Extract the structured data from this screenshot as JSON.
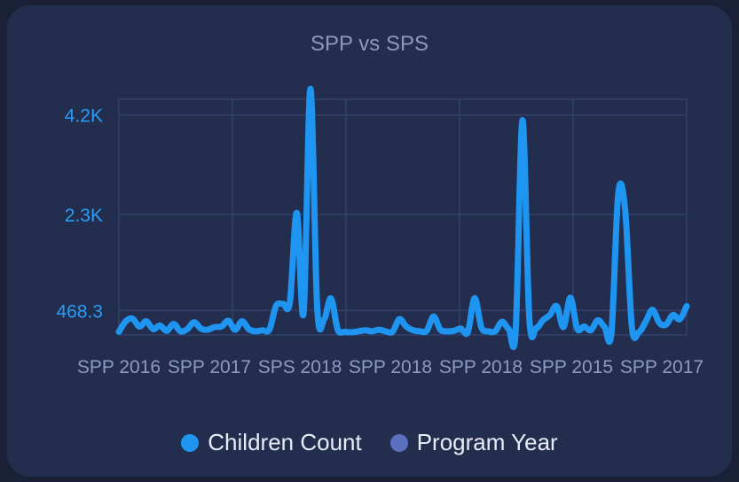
{
  "colors": {
    "background": "#1a2036",
    "card": "#232d4d",
    "grid": "#33406a",
    "axis": "#3a4878",
    "children_series": "#1f95f2",
    "program_series": "#5b6fbf",
    "ytick": "#2a9cf5",
    "xtick": "#8e9ac4",
    "title": "#8f98ba",
    "legend_text": "#e8ecf8"
  },
  "chart_data": {
    "type": "line",
    "title": "SPP vs SPS",
    "xlabel": "",
    "ylabel": "",
    "y_ticks": [
      468.3,
      2300,
      4200
    ],
    "y_tick_labels": [
      "468.3",
      "2.3K",
      "4.2K"
    ],
    "x_tick_labels": [
      "SPP 2016",
      "SPP 2017",
      "SPS 2018",
      "SPP 2018",
      "SPP 2018",
      "SPP 2015",
      "SPP 2017"
    ],
    "ylim": [
      0,
      4500
    ],
    "grid": true,
    "legend_position": "bottom",
    "series": [
      {
        "name": "Children Count",
        "color": "#1f95f2",
        "values": [
          60,
          260,
          310,
          160,
          260,
          110,
          180,
          80,
          210,
          70,
          110,
          240,
          120,
          100,
          150,
          160,
          270,
          100,
          260,
          110,
          70,
          90,
          100,
          560,
          590,
          630,
          2330,
          420,
          4700,
          500,
          300,
          700,
          100,
          60,
          50,
          70,
          90,
          70,
          100,
          70,
          60,
          300,
          160,
          90,
          70,
          80,
          350,
          100,
          70,
          80,
          120,
          50,
          700,
          140,
          70,
          70,
          250,
          110,
          60,
          4100,
          300,
          130,
          280,
          380,
          550,
          150,
          710,
          120,
          160,
          90,
          280,
          150,
          40,
          2700,
          2400,
          150,
          50,
          250,
          480,
          230,
          200,
          380,
          300,
          550
        ]
      },
      {
        "name": "Program Year",
        "color": "#5b6fbf",
        "values": []
      }
    ]
  }
}
